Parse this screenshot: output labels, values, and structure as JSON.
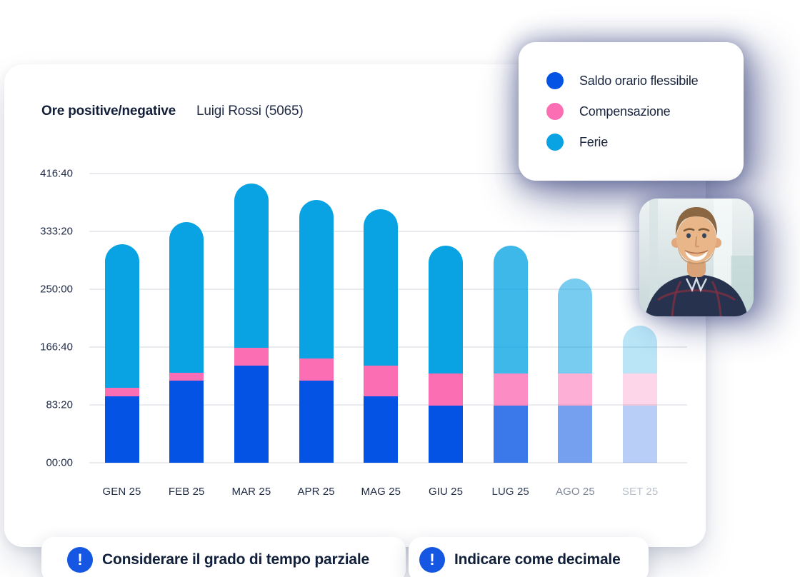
{
  "header": {
    "title": "Ore positive/negative",
    "subtitle": "Luigi Rossi (5065)"
  },
  "legend": {
    "position": "top-right-card"
  },
  "chart_data": {
    "type": "bar",
    "stacked": true,
    "title": "Ore positive/negative",
    "subtitle": "Luigi Rossi (5065)",
    "unit": "ore (hh:mm)",
    "grid": true,
    "legend_position": "top-right",
    "categories": [
      "GEN 25",
      "FEB 25",
      "MAR 25",
      "APR 25",
      "MAG 25",
      "GIU 25",
      "LUG 25",
      "AGO 25",
      "SET 25"
    ],
    "category_label_colors": [
      "#1e2a44",
      "#1e2a44",
      "#1e2a44",
      "#1e2a44",
      "#1e2a44",
      "#1e2a44",
      "#2c3a55",
      "#7d8798",
      "#b9c0cb"
    ],
    "series": [
      {
        "name": "Saldo orario flessibile",
        "color": "#0553e4",
        "values_hours": [
          96,
          118,
          140,
          118,
          96,
          82,
          82,
          82,
          82
        ]
      },
      {
        "name": "Compensazione",
        "color": "#fc6eb4",
        "values_hours": [
          12,
          12,
          26,
          32,
          44,
          47,
          47,
          47,
          47
        ]
      },
      {
        "name": "Ferie",
        "color": "#09a3e3",
        "values_hours": [
          207,
          217,
          236,
          229,
          225,
          184,
          184,
          136,
          69
        ]
      }
    ],
    "bar_opacity": [
      1,
      1,
      1,
      1,
      1,
      1,
      0.78,
      0.55,
      0.28
    ],
    "y_ticks": [
      {
        "label": "00:00",
        "hours": 0
      },
      {
        "label": "83:20",
        "hours": 83.333
      },
      {
        "label": "166:40",
        "hours": 166.667
      },
      {
        "label": "250:00",
        "hours": 250
      },
      {
        "label": "333:20",
        "hours": 333.333
      },
      {
        "label": "416:40",
        "hours": 416.667
      }
    ],
    "ylim": [
      0,
      433
    ]
  },
  "avatar": {
    "description": "smiling man with short hair and dark plaid shirt"
  },
  "footnotes": [
    {
      "icon": "exclamation",
      "text": "Considerare il grado di tempo parziale"
    },
    {
      "icon": "exclamation",
      "text": "Indicare come decimale"
    }
  ],
  "colors": {
    "saldo_blue": "#0553e4",
    "compensazione_pink": "#fc6eb4",
    "ferie_cyan": "#09a3e3",
    "pill_icon_blue": "#1557e2",
    "gridline": "#e9ebee",
    "text_dark": "#131f38"
  }
}
